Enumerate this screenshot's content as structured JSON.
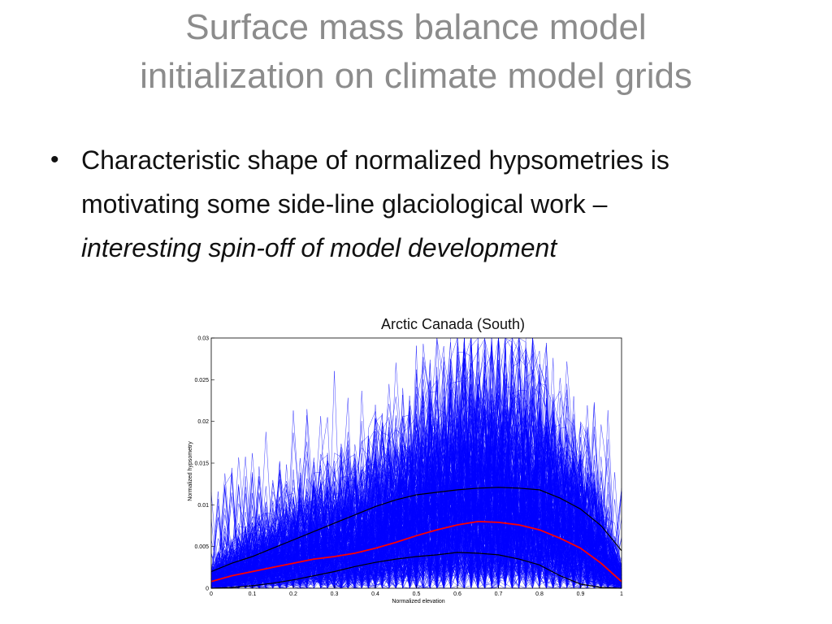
{
  "slide": {
    "title_line1": "Surface mass balance model",
    "title_line2": "initialization on climate model grids",
    "bullet": {
      "marker": "•",
      "text_plain": "Characteristic shape of normalized hypsometries is motivating some side-line glaciological work – ",
      "text_italic": "interesting spin-off of model development"
    },
    "chart_caption": "Arctic Canada (South)"
  },
  "colors": {
    "title": "#8c8c8c",
    "ensemble_lines": "#0000ff",
    "mean_line": "#ff0000",
    "envelope_lines": "#000000"
  },
  "chart_data": {
    "type": "line",
    "xlabel": "Normalized elevation",
    "ylabel": "Normalized hypsometry",
    "xlim": [
      0,
      1
    ],
    "ylim": [
      0,
      0.03
    ],
    "xticks": [
      "0",
      "0.1",
      "0.2",
      "0.3",
      "0.4",
      "0.5",
      "0.6",
      "0.7",
      "0.8",
      "0.9",
      "1"
    ],
    "yticks": [
      "0",
      "0.005",
      "0.01",
      "0.015",
      "0.02",
      "0.025",
      "0.03"
    ],
    "x": [
      0,
      0.05,
      0.1,
      0.15,
      0.2,
      0.25,
      0.3,
      0.35,
      0.4,
      0.45,
      0.5,
      0.55,
      0.6,
      0.65,
      0.7,
      0.75,
      0.8,
      0.85,
      0.9,
      0.95,
      1
    ],
    "series": [
      {
        "role": "mean",
        "values": [
          0.0008,
          0.0015,
          0.002,
          0.0025,
          0.003,
          0.0035,
          0.0038,
          0.0042,
          0.0048,
          0.0055,
          0.0063,
          0.007,
          0.0076,
          0.008,
          0.0079,
          0.0076,
          0.007,
          0.006,
          0.0048,
          0.003,
          0.0008
        ]
      },
      {
        "role": "upper",
        "values": [
          0.002,
          0.003,
          0.0038,
          0.0048,
          0.0058,
          0.0068,
          0.0078,
          0.0088,
          0.0098,
          0.0106,
          0.0112,
          0.0115,
          0.0118,
          0.012,
          0.0121,
          0.012,
          0.0118,
          0.0108,
          0.0095,
          0.0075,
          0.0045
        ]
      },
      {
        "role": "lower",
        "values": [
          0.0,
          0.0001,
          0.0003,
          0.0006,
          0.001,
          0.0015,
          0.002,
          0.0026,
          0.0031,
          0.0035,
          0.0038,
          0.004,
          0.0043,
          0.0042,
          0.004,
          0.0035,
          0.0028,
          0.0015,
          0.0005,
          0.0001,
          0.0
        ]
      }
    ],
    "ensemble_count": 320,
    "grid": false,
    "legend": "none"
  }
}
